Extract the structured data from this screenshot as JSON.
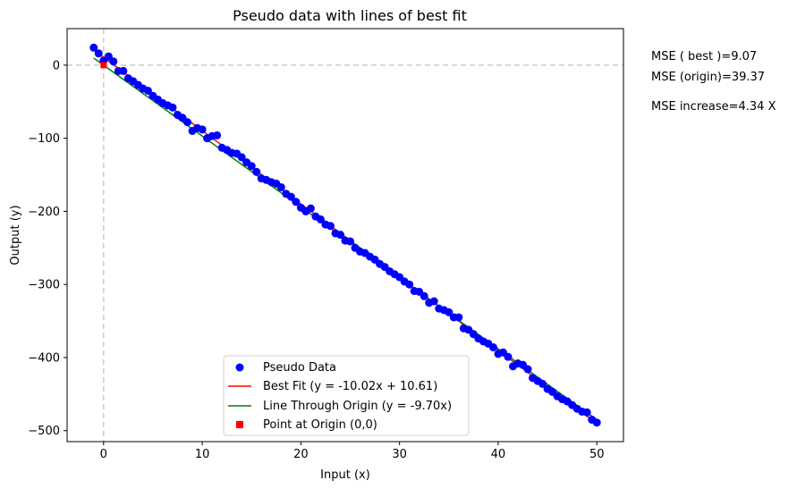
{
  "chart_data": {
    "type": "scatter",
    "title": "Pseudo data with lines of best fit",
    "xlabel": "Input (x)",
    "ylabel": "Output (y)",
    "xlim": [
      -3.7,
      52.7
    ],
    "ylim": [
      -515,
      50
    ],
    "xticks": [
      0,
      10,
      20,
      30,
      40,
      50
    ],
    "xtick_labels": [
      "0",
      "10",
      "20",
      "30",
      "40",
      "50"
    ],
    "yticks": [
      0,
      -100,
      -200,
      -300,
      -400,
      -500
    ],
    "ytick_labels": [
      "0",
      "−100",
      "−200",
      "−300",
      "−400",
      "−500"
    ],
    "grid": false,
    "legend_position": "lower center",
    "series": [
      {
        "name": "Pseudo Data",
        "kind": "scatter",
        "color": "#0000ff",
        "points": [
          [
            -1.0,
            24
          ],
          [
            -0.5,
            16
          ],
          [
            0.0,
            6
          ],
          [
            0.5,
            12
          ],
          [
            1.0,
            5
          ],
          [
            1.5,
            -8
          ],
          [
            2.0,
            -8
          ],
          [
            2.5,
            -18
          ],
          [
            3.0,
            -22
          ],
          [
            3.5,
            -27
          ],
          [
            4.0,
            -32
          ],
          [
            4.5,
            -35
          ],
          [
            5.0,
            -42
          ],
          [
            5.5,
            -47
          ],
          [
            6.0,
            -52
          ],
          [
            6.5,
            -55
          ],
          [
            7.0,
            -58
          ],
          [
            7.5,
            -68
          ],
          [
            8.0,
            -72
          ],
          [
            8.5,
            -78
          ],
          [
            9.0,
            -90
          ],
          [
            9.5,
            -86
          ],
          [
            10.0,
            -88
          ],
          [
            10.5,
            -100
          ],
          [
            11.0,
            -97
          ],
          [
            11.5,
            -96
          ],
          [
            12.0,
            -113
          ],
          [
            12.5,
            -116
          ],
          [
            13.0,
            -120
          ],
          [
            13.5,
            -121
          ],
          [
            14.0,
            -126
          ],
          [
            14.5,
            -133
          ],
          [
            15.0,
            -138
          ],
          [
            15.5,
            -146
          ],
          [
            16.0,
            -155
          ],
          [
            16.5,
            -157
          ],
          [
            17.0,
            -160
          ],
          [
            17.5,
            -162
          ],
          [
            18.0,
            -167
          ],
          [
            18.5,
            -176
          ],
          [
            19.0,
            -180
          ],
          [
            19.5,
            -187
          ],
          [
            20.0,
            -195
          ],
          [
            20.5,
            -200
          ],
          [
            21.0,
            -196
          ],
          [
            21.5,
            -207
          ],
          [
            22.0,
            -211
          ],
          [
            22.5,
            -218
          ],
          [
            23.0,
            -220
          ],
          [
            23.5,
            -230
          ],
          [
            24.0,
            -232
          ],
          [
            24.5,
            -240
          ],
          [
            25.0,
            -241
          ],
          [
            25.5,
            -250
          ],
          [
            26.0,
            -255
          ],
          [
            26.5,
            -257
          ],
          [
            27.0,
            -262
          ],
          [
            27.5,
            -266
          ],
          [
            28.0,
            -272
          ],
          [
            28.5,
            -276
          ],
          [
            29.0,
            -282
          ],
          [
            29.5,
            -286
          ],
          [
            30.0,
            -290
          ],
          [
            30.5,
            -296
          ],
          [
            31.0,
            -300
          ],
          [
            31.5,
            -309
          ],
          [
            32.0,
            -310
          ],
          [
            32.5,
            -316
          ],
          [
            33.0,
            -325
          ],
          [
            33.5,
            -323
          ],
          [
            34.0,
            -333
          ],
          [
            34.5,
            -335
          ],
          [
            35.0,
            -338
          ],
          [
            35.5,
            -345
          ],
          [
            36.0,
            -345
          ],
          [
            36.5,
            -360
          ],
          [
            37.0,
            -362
          ],
          [
            37.5,
            -368
          ],
          [
            38.0,
            -374
          ],
          [
            38.5,
            -378
          ],
          [
            39.0,
            -381
          ],
          [
            39.5,
            -386
          ],
          [
            40.0,
            -395
          ],
          [
            40.5,
            -393
          ],
          [
            41.0,
            -399
          ],
          [
            41.5,
            -412
          ],
          [
            42.0,
            -408
          ],
          [
            42.5,
            -410
          ],
          [
            43.0,
            -416
          ],
          [
            43.5,
            -428
          ],
          [
            44.0,
            -432
          ],
          [
            44.5,
            -436
          ],
          [
            45.0,
            -443
          ],
          [
            45.5,
            -447
          ],
          [
            46.0,
            -453
          ],
          [
            46.5,
            -457
          ],
          [
            47.0,
            -460
          ],
          [
            47.5,
            -465
          ],
          [
            48.0,
            -470
          ],
          [
            48.5,
            -474
          ],
          [
            49.0,
            -475
          ],
          [
            49.5,
            -485
          ],
          [
            50.0,
            -489
          ]
        ]
      },
      {
        "name": "Best Fit (y = -10.02x + 10.61)",
        "kind": "line",
        "color": "#ff0000",
        "slope": -10.02,
        "intercept": 10.61,
        "x_range": [
          -1.0,
          50.0
        ]
      },
      {
        "name": "Line Through Origin (y = -9.70x)",
        "kind": "line",
        "color": "#008000",
        "slope": -9.7,
        "intercept": 0,
        "x_range": [
          -1.0,
          50.0
        ]
      },
      {
        "name": "Point at Origin (0,0)",
        "kind": "marker",
        "marker": "square",
        "color": "#ff0000",
        "points": [
          [
            0,
            0
          ]
        ]
      }
    ],
    "reference_lines": {
      "horizontal_y": 0,
      "vertical_x": 0,
      "style": "dashed",
      "color": "#cccccc"
    },
    "annotations": [
      "MSE ( best )=9.07",
      "MSE (origin)=39.37",
      "MSE increase=4.34 X"
    ]
  }
}
